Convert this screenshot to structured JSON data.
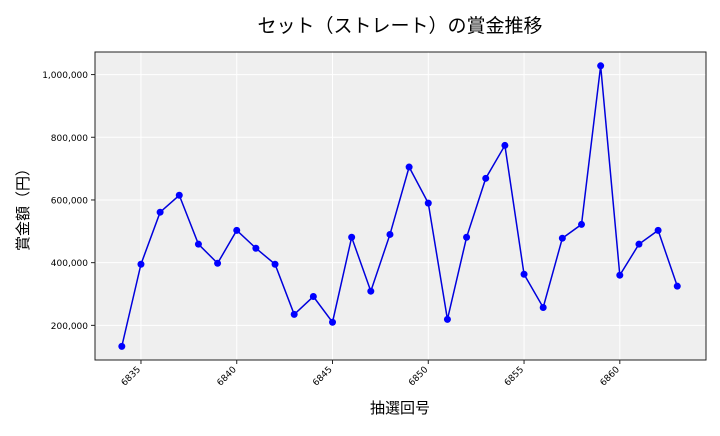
{
  "chart_data": {
    "type": "line",
    "title": "セット（ストレート）の賞金推移",
    "xlabel": "抽選回号",
    "ylabel": "賞金額（円）",
    "x": [
      6834,
      6835,
      6836,
      6837,
      6838,
      6839,
      6840,
      6841,
      6842,
      6843,
      6844,
      6845,
      6846,
      6847,
      6848,
      6849,
      6850,
      6851,
      6852,
      6853,
      6854,
      6855,
      6856,
      6857,
      6858,
      6859,
      6860,
      6861,
      6862,
      6863
    ],
    "series": [
      {
        "values": [
          133000,
          395000,
          561000,
          615000,
          459000,
          398000,
          503000,
          446000,
          395000,
          235000,
          292000,
          210000,
          481000,
          309000,
          490000,
          705000,
          590000,
          219000,
          481000,
          669000,
          774000,
          363000,
          257000,
          478000,
          522000,
          1028000,
          360000,
          459000,
          503000,
          325000
        ]
      }
    ],
    "xticks": [
      6835,
      6840,
      6845,
      6850,
      6855,
      6860
    ],
    "yticks": [
      200000,
      400000,
      600000,
      800000,
      1000000
    ],
    "ytick_labels": [
      "200,000",
      "400,000",
      "600,000",
      "800,000",
      "1,000,000"
    ],
    "xlim": [
      6832.6,
      6864.5
    ],
    "ylim": [
      89500,
      1072000
    ],
    "grid": true,
    "colors": {
      "line": "#0000dd",
      "marker": "#0000ff",
      "plot_bg": "#efefef",
      "grid": "#ffffff"
    }
  }
}
